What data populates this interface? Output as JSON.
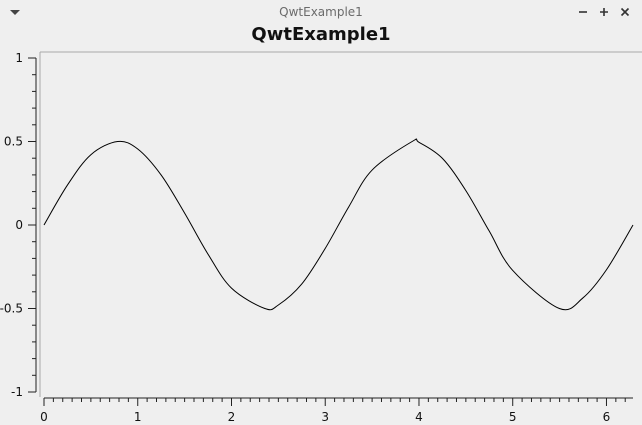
{
  "window": {
    "title": "QwtExample1",
    "menu_icon": "chevron-down-icon",
    "controls": [
      "minimize-icon",
      "maximize-icon",
      "close-icon"
    ]
  },
  "plot": {
    "title": "QwtExample1",
    "background": "#efefef",
    "curve_color": "#000000"
  },
  "chart_data": {
    "type": "line",
    "title": "QwtExample1",
    "xlabel": "",
    "ylabel": "",
    "xlim": [
      0,
      6.283
    ],
    "ylim": [
      -1,
      1
    ],
    "x_ticks": [
      "0",
      "1",
      "2",
      "3",
      "4",
      "5",
      "6"
    ],
    "y_ticks": [
      "1",
      "0.5",
      "0",
      "-0.5",
      "-1"
    ],
    "grid": false,
    "series": [
      {
        "values": [
          [
            0,
            0
          ],
          [
            0.25,
            0.239
          ],
          [
            0.5,
            0.421
          ],
          [
            0.785,
            0.5
          ],
          [
            1.0,
            0.455
          ],
          [
            1.25,
            0.299
          ],
          [
            1.5,
            0.071
          ],
          [
            1.75,
            -0.175
          ],
          [
            2.0,
            -0.378
          ],
          [
            2.356,
            -0.5
          ],
          [
            2.5,
            -0.479
          ],
          [
            2.75,
            -0.353
          ],
          [
            3.0,
            -0.14
          ],
          [
            3.25,
            0.108
          ],
          [
            3.5,
            0.329
          ],
          [
            3.927,
            0.5
          ],
          [
            4.0,
            0.495
          ],
          [
            4.25,
            0.399
          ],
          [
            4.5,
            0.206
          ],
          [
            4.75,
            -0.037
          ],
          [
            5.0,
            -0.272
          ],
          [
            5.498,
            -0.5
          ],
          [
            5.75,
            -0.436
          ],
          [
            6.0,
            -0.268
          ],
          [
            6.283,
            0
          ]
        ]
      }
    ]
  }
}
